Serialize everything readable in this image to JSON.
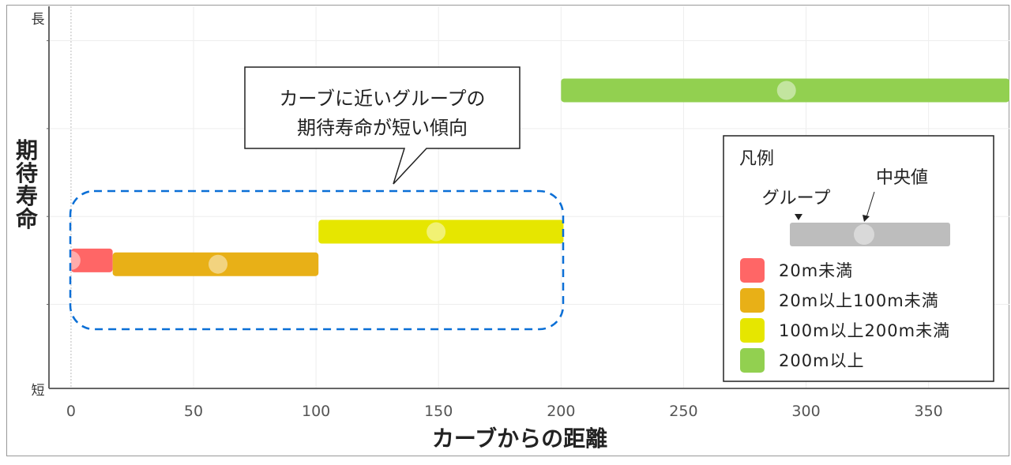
{
  "chart_data": {
    "type": "range-bar",
    "xlabel": "カーブからの距離",
    "ylabel": "期待寿命",
    "y_top_label": "長",
    "y_bottom_label": "短",
    "xlim": [
      -9,
      383
    ],
    "ylim": [
      0,
      1
    ],
    "x_ticks": [
      0,
      50,
      100,
      150,
      200,
      250,
      300,
      350
    ],
    "grid": true,
    "groups": [
      {
        "name": "20m未満",
        "color": "#ff6666",
        "x_start": 0,
        "x_end": 17,
        "median": 0,
        "y": 0.335
      },
      {
        "name": "20m以上100m未満",
        "color": "#e8b017",
        "x_start": 17,
        "x_end": 101,
        "median": 60,
        "y": 0.325
      },
      {
        "name": "100m以上200m未満",
        "color": "#e6e600",
        "x_start": 101,
        "x_end": 201,
        "median": 149,
        "y": 0.41
      },
      {
        "name": "200m以上",
        "color": "#92d050",
        "x_start": 200,
        "x_end": 383,
        "median": 292,
        "y": 0.78
      }
    ],
    "annotation": {
      "lines": [
        "カーブに近いグループの",
        "期待寿命が短い傾向"
      ]
    },
    "legend": {
      "title": "凡例",
      "group_label": "グループ",
      "median_label": "中央値",
      "placement": "right"
    }
  }
}
